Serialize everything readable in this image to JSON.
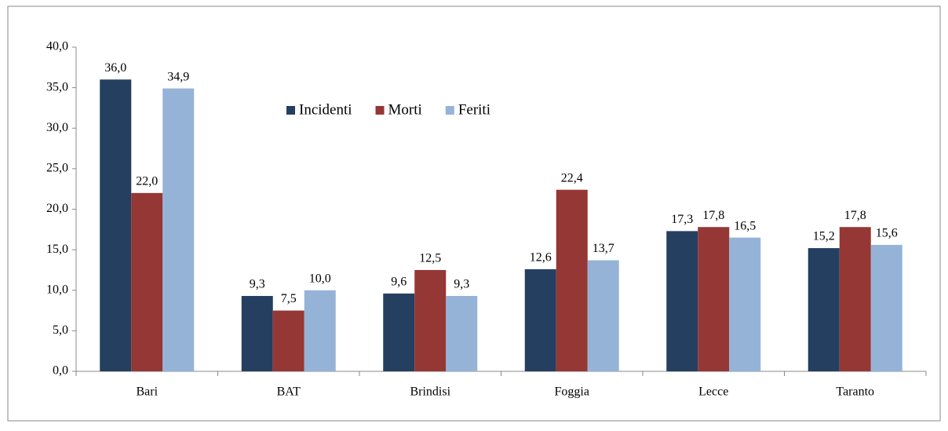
{
  "chart_data": {
    "type": "bar",
    "categories": [
      "Bari",
      "BAT",
      "Brindisi",
      "Foggia",
      "Lecce",
      "Taranto"
    ],
    "series": [
      {
        "name": "Incidenti",
        "color": "#243f60",
        "values": [
          36.0,
          9.3,
          9.6,
          12.6,
          17.3,
          15.2
        ],
        "value_labels": [
          "36,0",
          "9,3",
          "9,6",
          "12,6",
          "17,3",
          "15,2"
        ]
      },
      {
        "name": "Morti",
        "color": "#953735",
        "values": [
          22.0,
          7.5,
          12.5,
          22.4,
          17.8,
          17.8
        ],
        "value_labels": [
          "22,0",
          "7,5",
          "12,5",
          "22,4",
          "17,8",
          "17,8"
        ]
      },
      {
        "name": "Feriti",
        "color": "#95b3d7",
        "values": [
          34.9,
          10.0,
          9.3,
          13.7,
          16.5,
          15.6
        ],
        "value_labels": [
          "34,9",
          "10,0",
          "9,3",
          "13,7",
          "16,5",
          "15,6"
        ]
      }
    ],
    "ylim": [
      0,
      40
    ],
    "yticks": [
      {
        "value": 0,
        "label": "0,0"
      },
      {
        "value": 5,
        "label": "5,0"
      },
      {
        "value": 10,
        "label": "10,0"
      },
      {
        "value": 15,
        "label": "15,0"
      },
      {
        "value": 20,
        "label": "20,0"
      },
      {
        "value": 25,
        "label": "25,0"
      },
      {
        "value": 30,
        "label": "30,0"
      },
      {
        "value": 35,
        "label": "35,0"
      },
      {
        "value": 40,
        "label": "40,0"
      }
    ],
    "grid": false,
    "legend": "top"
  }
}
